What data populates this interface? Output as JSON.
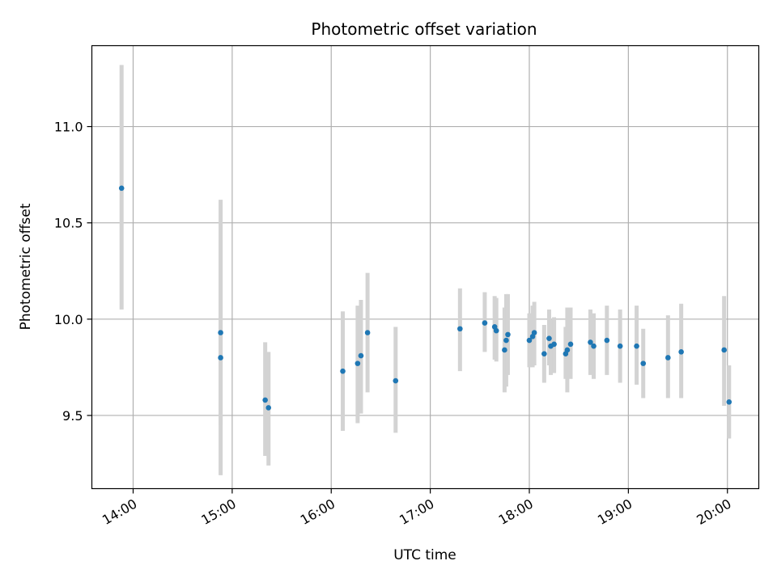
{
  "chart_data": {
    "type": "scatter",
    "title": "Photometric offset variation",
    "xlabel": "UTC time",
    "ylabel": "Photometric offset",
    "x_format": "HH:MM",
    "xlim": [
      "13:35",
      "20:19"
    ],
    "ylim": [
      9.12,
      11.42
    ],
    "xticks": [
      "14:00",
      "15:00",
      "16:00",
      "17:00",
      "18:00",
      "19:00",
      "20:00"
    ],
    "yticks": [
      9.5,
      10.0,
      10.5,
      11.0
    ],
    "grid": true,
    "legend": "none",
    "colors": {
      "marker": "#1f77b4",
      "errorbar": "#d3d3d3",
      "grid": "#b0b0b0"
    },
    "points": [
      {
        "x": "13:53",
        "y": 10.68,
        "yerr": [
          10.05,
          11.32
        ]
      },
      {
        "x": "14:53",
        "y": 9.93,
        "yerr": [
          9.45,
          10.41
        ]
      },
      {
        "x": "14:53",
        "y": 9.8,
        "yerr": [
          9.19,
          10.62
        ]
      },
      {
        "x": "15:20",
        "y": 9.58,
        "yerr": [
          9.29,
          9.88
        ]
      },
      {
        "x": "15:22",
        "y": 9.54,
        "yerr": [
          9.24,
          9.83
        ]
      },
      {
        "x": "16:07",
        "y": 9.73,
        "yerr": [
          9.42,
          10.04
        ]
      },
      {
        "x": "16:16",
        "y": 9.77,
        "yerr": [
          9.46,
          10.07
        ]
      },
      {
        "x": "16:18",
        "y": 9.81,
        "yerr": [
          9.51,
          10.1
        ]
      },
      {
        "x": "16:22",
        "y": 9.93,
        "yerr": [
          9.62,
          10.24
        ]
      },
      {
        "x": "16:39",
        "y": 9.68,
        "yerr": [
          9.41,
          9.96
        ]
      },
      {
        "x": "17:18",
        "y": 9.95,
        "yerr": [
          9.73,
          10.16
        ]
      },
      {
        "x": "17:33",
        "y": 9.98,
        "yerr": [
          9.83,
          10.14
        ]
      },
      {
        "x": "17:39",
        "y": 9.96,
        "yerr": [
          9.79,
          10.12
        ]
      },
      {
        "x": "17:40",
        "y": 9.94,
        "yerr": [
          9.78,
          10.11
        ]
      },
      {
        "x": "17:45",
        "y": 9.84,
        "yerr": [
          9.62,
          10.06
        ]
      },
      {
        "x": "17:46",
        "y": 9.89,
        "yerr": [
          9.65,
          10.13
        ]
      },
      {
        "x": "17:47",
        "y": 9.92,
        "yerr": [
          9.71,
          10.13
        ]
      },
      {
        "x": "18:00",
        "y": 9.89,
        "yerr": [
          9.75,
          10.03
        ]
      },
      {
        "x": "18:02",
        "y": 9.91,
        "yerr": [
          9.75,
          10.07
        ]
      },
      {
        "x": "18:03",
        "y": 9.93,
        "yerr": [
          9.76,
          10.09
        ]
      },
      {
        "x": "18:09",
        "y": 9.82,
        "yerr": [
          9.67,
          9.97
        ]
      },
      {
        "x": "18:12",
        "y": 9.9,
        "yerr": [
          9.76,
          10.05
        ]
      },
      {
        "x": "18:13",
        "y": 9.86,
        "yerr": [
          9.71,
          10.0
        ]
      },
      {
        "x": "18:15",
        "y": 9.87,
        "yerr": [
          9.72,
          10.01
        ]
      },
      {
        "x": "18:22",
        "y": 9.82,
        "yerr": [
          9.69,
          9.96
        ]
      },
      {
        "x": "18:23",
        "y": 9.84,
        "yerr": [
          9.62,
          10.06
        ]
      },
      {
        "x": "18:25",
        "y": 9.87,
        "yerr": [
          9.69,
          10.06
        ]
      },
      {
        "x": "18:37",
        "y": 9.88,
        "yerr": [
          9.71,
          10.05
        ]
      },
      {
        "x": "18:39",
        "y": 9.86,
        "yerr": [
          9.69,
          10.03
        ]
      },
      {
        "x": "18:47",
        "y": 9.89,
        "yerr": [
          9.71,
          10.07
        ]
      },
      {
        "x": "18:55",
        "y": 9.86,
        "yerr": [
          9.67,
          10.05
        ]
      },
      {
        "x": "19:05",
        "y": 9.86,
        "yerr": [
          9.66,
          10.07
        ]
      },
      {
        "x": "19:09",
        "y": 9.77,
        "yerr": [
          9.59,
          9.95
        ]
      },
      {
        "x": "19:24",
        "y": 9.8,
        "yerr": [
          9.59,
          10.02
        ]
      },
      {
        "x": "19:32",
        "y": 9.83,
        "yerr": [
          9.59,
          10.08
        ]
      },
      {
        "x": "19:58",
        "y": 9.84,
        "yerr": [
          9.55,
          10.12
        ]
      },
      {
        "x": "20:01",
        "y": 9.57,
        "yerr": [
          9.38,
          9.76
        ]
      }
    ]
  }
}
